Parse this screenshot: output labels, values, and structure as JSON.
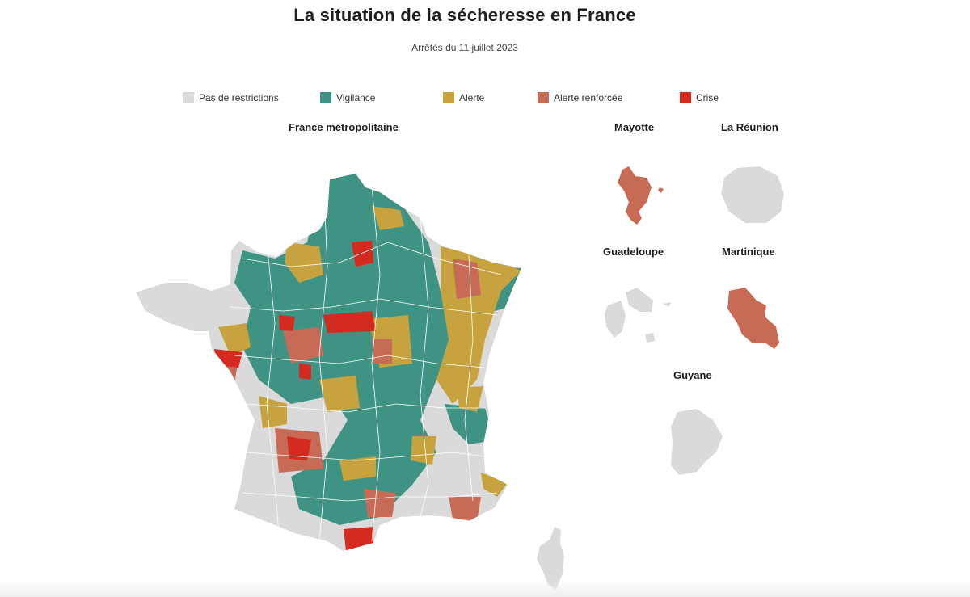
{
  "header": {
    "title": "La situation de la sécheresse en France",
    "subtitle": "Arrêtés du 11 juillet 2023"
  },
  "legend": {
    "items": [
      {
        "label": "Pas de restrictions",
        "color": "#dadada"
      },
      {
        "label": "Vigilance",
        "color": "#3f9383"
      },
      {
        "label": "Alerte",
        "color": "#c6a33e"
      },
      {
        "label": "Alerte renforcée",
        "color": "#c86b56"
      },
      {
        "label": "Crise",
        "color": "#d52a20"
      }
    ]
  },
  "maps": {
    "metropole": {
      "label": "France métropolitaine",
      "icon": "france-metropole-map"
    },
    "mayotte": {
      "label": "Mayotte",
      "status": "Alerte renforcée"
    },
    "reunion": {
      "label": "La Réunion",
      "status": "Pas de restrictions"
    },
    "guadeloupe": {
      "label": "Guadeloupe",
      "status": "Pas de restrictions"
    },
    "martinique": {
      "label": "Martinique",
      "status": "Alerte renforcée"
    },
    "guyane": {
      "label": "Guyane",
      "status": "Pas de restrictions"
    }
  }
}
